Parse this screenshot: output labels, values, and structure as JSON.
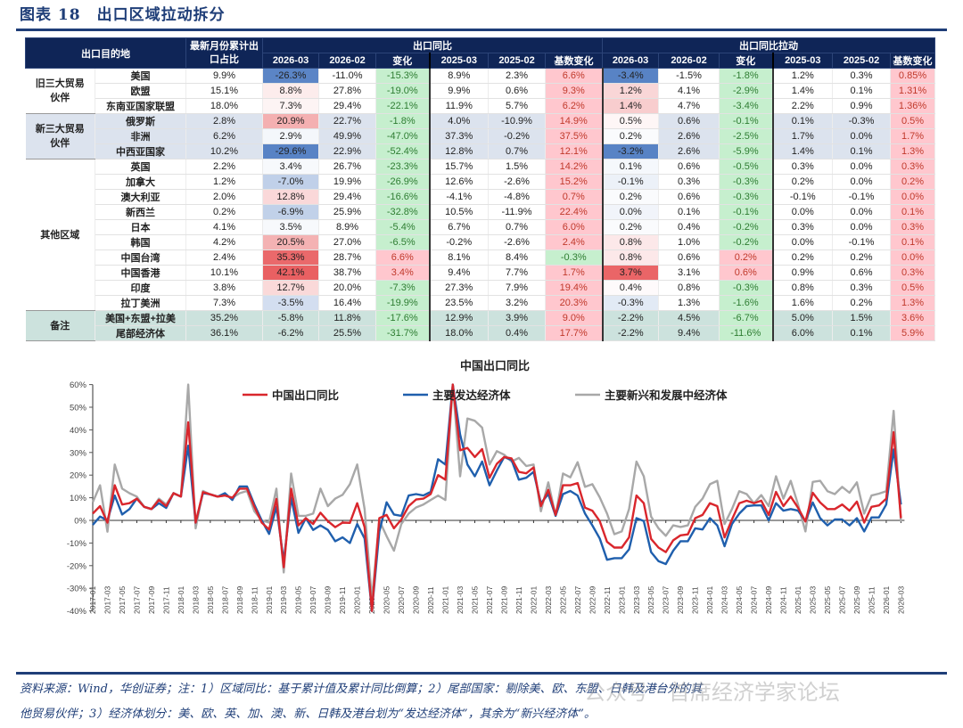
{
  "figure_title": "图表 18　出口区域拉动拆分",
  "table": {
    "header": {
      "destination": "出口目的地",
      "share": "最新月份累计出口占比",
      "yoy_group": "出口同比",
      "pull_group": "出口同比拉动",
      "subcols": [
        "2026-03",
        "2026-02",
        "变化",
        "2025-03",
        "2025-02",
        "基数变化"
      ]
    },
    "groups": [
      {
        "name": "旧三大贸易伙伴",
        "style": "old",
        "rows": [
          {
            "name": "美国",
            "values": [
              "9.9%",
              "-26.3%",
              "-11.0%",
              "-15.3%",
              "8.9%",
              "2.3%",
              "6.6%",
              "-3.4%",
              "-1.5%",
              "-1.8%",
              "1.2%",
              "0.3%",
              "0.85%"
            ]
          },
          {
            "name": "欧盟",
            "values": [
              "15.1%",
              "8.8%",
              "27.8%",
              "-19.0%",
              "9.9%",
              "0.6%",
              "9.3%",
              "1.2%",
              "4.1%",
              "-2.9%",
              "1.4%",
              "0.1%",
              "1.31%"
            ]
          },
          {
            "name": "东南亚国家联盟",
            "values": [
              "18.0%",
              "7.3%",
              "29.4%",
              "-22.1%",
              "11.9%",
              "5.7%",
              "6.2%",
              "1.4%",
              "4.7%",
              "-3.4%",
              "2.2%",
              "0.9%",
              "1.36%"
            ]
          }
        ]
      },
      {
        "name": "新三大贸易伙伴",
        "style": "new",
        "rows": [
          {
            "name": "俄罗斯",
            "values": [
              "2.8%",
              "20.9%",
              "22.7%",
              "-1.8%",
              "4.0%",
              "-10.9%",
              "14.9%",
              "0.5%",
              "0.6%",
              "-0.1%",
              "0.1%",
              "-0.3%",
              "0.5%"
            ]
          },
          {
            "name": "非洲",
            "values": [
              "6.2%",
              "2.9%",
              "49.9%",
              "-47.0%",
              "37.3%",
              "-0.2%",
              "37.5%",
              "0.2%",
              "2.6%",
              "-2.5%",
              "1.7%",
              "0.0%",
              "1.7%"
            ]
          },
          {
            "name": "中西亚国家",
            "values": [
              "10.2%",
              "-29.6%",
              "22.9%",
              "-52.4%",
              "12.8%",
              "0.7%",
              "12.1%",
              "-3.2%",
              "2.6%",
              "-5.9%",
              "1.4%",
              "0.1%",
              "1.3%"
            ]
          }
        ]
      },
      {
        "name": "其他区域",
        "style": "other",
        "rows": [
          {
            "name": "英国",
            "values": [
              "2.2%",
              "3.4%",
              "26.7%",
              "-23.3%",
              "15.7%",
              "1.5%",
              "14.2%",
              "0.1%",
              "0.6%",
              "-0.5%",
              "0.3%",
              "0.0%",
              "0.3%"
            ]
          },
          {
            "name": "加拿大",
            "values": [
              "1.2%",
              "-7.0%",
              "19.9%",
              "-26.9%",
              "12.6%",
              "-2.6%",
              "15.2%",
              "-0.1%",
              "0.3%",
              "-0.3%",
              "0.2%",
              "0.0%",
              "0.2%"
            ]
          },
          {
            "name": "澳大利亚",
            "values": [
              "2.0%",
              "12.8%",
              "29.4%",
              "-16.6%",
              "-4.1%",
              "-4.8%",
              "0.7%",
              "0.2%",
              "0.6%",
              "-0.3%",
              "-0.1%",
              "-0.1%",
              "0.0%"
            ]
          },
          {
            "name": "新西兰",
            "values": [
              "0.2%",
              "-6.9%",
              "25.9%",
              "-32.8%",
              "10.5%",
              "-11.9%",
              "22.4%",
              "0.0%",
              "0.1%",
              "-0.1%",
              "0.0%",
              "0.0%",
              "0.1%"
            ]
          },
          {
            "name": "日本",
            "values": [
              "4.1%",
              "3.5%",
              "8.9%",
              "-5.4%",
              "6.7%",
              "0.7%",
              "6.0%",
              "0.2%",
              "0.4%",
              "-0.2%",
              "0.3%",
              "0.0%",
              "0.3%"
            ]
          },
          {
            "name": "韩国",
            "values": [
              "4.2%",
              "20.5%",
              "27.0%",
              "-6.5%",
              "-0.2%",
              "-2.6%",
              "2.4%",
              "0.8%",
              "1.0%",
              "-0.2%",
              "0.0%",
              "-0.1%",
              "0.1%"
            ]
          },
          {
            "name": "中国台湾",
            "values": [
              "2.4%",
              "35.3%",
              "28.7%",
              "6.6%",
              "8.1%",
              "8.4%",
              "-0.3%",
              "0.8%",
              "0.6%",
              "0.2%",
              "0.2%",
              "0.2%",
              "0.0%"
            ]
          },
          {
            "name": "中国香港",
            "values": [
              "10.1%",
              "42.1%",
              "38.7%",
              "3.4%",
              "9.4%",
              "7.7%",
              "1.7%",
              "3.7%",
              "3.1%",
              "0.6%",
              "0.9%",
              "0.6%",
              "0.3%"
            ]
          },
          {
            "name": "印度",
            "values": [
              "3.8%",
              "12.7%",
              "20.0%",
              "-7.3%",
              "27.3%",
              "7.9%",
              "19.4%",
              "0.4%",
              "0.8%",
              "-0.3%",
              "0.8%",
              "0.3%",
              "0.5%"
            ]
          },
          {
            "name": "拉丁美洲",
            "values": [
              "7.3%",
              "-3.5%",
              "16.4%",
              "-19.9%",
              "23.5%",
              "3.2%",
              "20.3%",
              "-0.3%",
              "1.3%",
              "-1.6%",
              "1.6%",
              "0.2%",
              "1.3%"
            ]
          }
        ]
      },
      {
        "name": "备注",
        "style": "note",
        "rows": [
          {
            "name": "美国+东盟+拉美",
            "values": [
              "35.2%",
              "-5.8%",
              "11.8%",
              "-17.6%",
              "12.9%",
              "3.9%",
              "9.0%",
              "-2.2%",
              "4.5%",
              "-6.7%",
              "5.0%",
              "1.5%",
              "3.6%"
            ]
          },
          {
            "name": "尾部经济体",
            "values": [
              "36.1%",
              "-6.2%",
              "25.5%",
              "-31.7%",
              "18.0%",
              "0.4%",
              "17.7%",
              "-2.2%",
              "9.4%",
              "-11.6%",
              "6.0%",
              "0.1%",
              "5.9%"
            ]
          }
        ]
      }
    ],
    "colors": {
      "header_bg": "#0f2557",
      "neg_fill": "#c6efce",
      "neg_text": "#2e7d32",
      "pos_fill": "#ffc7ce",
      "pos_text": "#c0392b",
      "heat_neg": "#4f7cc2",
      "heat_pos": "#e8585a"
    }
  },
  "chart_data": {
    "type": "line",
    "title": "中国出口同比",
    "xlabel": "",
    "ylabel": "",
    "ylim": [
      -40,
      60
    ],
    "yticks": [
      "60%",
      "50%",
      "40%",
      "30%",
      "20%",
      "10%",
      "0%",
      "-10%",
      "-20%",
      "-30%",
      "-40%"
    ],
    "x_start": "2017-01",
    "x_end": "2026-03",
    "x_tick_step_months": 2,
    "legend_position": "top",
    "series": [
      {
        "name": "中国出口同比",
        "color": "#d9262c",
        "values": [
          3,
          6.3,
          -1,
          15.5,
          7,
          7.6,
          9.6,
          6,
          5,
          9,
          6.3,
          12,
          10.5,
          43.4,
          -1,
          12.5,
          11.5,
          10.5,
          11,
          10,
          14,
          14,
          6,
          -1,
          -4,
          9.5,
          -20.7,
          14,
          -2.2,
          1,
          -1.6,
          3.4,
          -0.3,
          -3,
          -1,
          -1.1,
          7.6,
          -3,
          -40,
          1,
          2.4,
          -3.5,
          0.4,
          6.3,
          9.2,
          9.6,
          11.6,
          20,
          18,
          62,
          31,
          32,
          28,
          31.5,
          18.8,
          25,
          28,
          27.4,
          21.4,
          20.8,
          23.4,
          6.3,
          13.5,
          2.4,
          15.5,
          15.5,
          16.5,
          5.6,
          4.3,
          -0.3,
          -9.5,
          -12,
          -12,
          -7.5,
          11,
          7.6,
          -8.2,
          -12,
          -14,
          -8.8,
          -6.6,
          -6.2,
          1,
          2.4,
          7.6,
          6.3,
          -7.5,
          0.4,
          7.6,
          8.7,
          7.6,
          8.7,
          2.4,
          12.6,
          6.3,
          10.5,
          5.6,
          -0.5,
          12.2,
          7.9,
          5,
          5,
          7,
          4.3,
          8.3,
          -1,
          6,
          6.6,
          9.6,
          39,
          1
        ]
      },
      {
        "name": "主要发达经济体",
        "color": "#1f5fad",
        "values": [
          -2,
          1.7,
          0,
          11,
          2.6,
          5,
          9.6,
          6,
          5,
          7.6,
          5.5,
          12,
          10.5,
          33,
          -1,
          12,
          11.5,
          10.5,
          12,
          9,
          15,
          15,
          7,
          0,
          -6,
          6,
          -18,
          10,
          -5.5,
          1,
          -4.2,
          -2.2,
          -4.2,
          -9.2,
          -7.5,
          -10,
          -1.6,
          -8,
          -40,
          -5,
          8,
          2.6,
          2,
          11,
          11.6,
          11,
          12.6,
          27,
          24.7,
          62,
          38,
          24.7,
          19.5,
          26,
          15.5,
          22,
          28,
          26.7,
          18,
          18.8,
          21.4,
          7.6,
          11.6,
          2,
          11.6,
          13,
          11,
          3,
          -2.2,
          -8,
          -17.4,
          -16.7,
          -16.7,
          -12.8,
          1,
          -0.3,
          -14,
          -18,
          -19.3,
          -13.4,
          -9.2,
          -9.2,
          -3.5,
          -4,
          1,
          -2.2,
          -11.4,
          -1.6,
          3,
          6.3,
          6.6,
          6.6,
          0,
          7.6,
          4.3,
          5,
          4.3,
          -0.3,
          7.9,
          1,
          -2.2,
          0.4,
          0.4,
          -2.2,
          1,
          -4.9,
          1.3,
          1.3,
          7,
          31.3,
          7
        ]
      },
      {
        "name": "主要新兴和发展中经济体",
        "color": "#a8a8a8",
        "values": [
          8,
          15.5,
          -5,
          24.7,
          14,
          12,
          10.5,
          6,
          5,
          9.6,
          7,
          12,
          10.5,
          61,
          -3.5,
          13,
          11.5,
          10.5,
          11,
          10,
          12,
          13,
          4,
          0,
          -1,
          14,
          -23,
          20.7,
          2,
          2,
          3,
          14,
          6.3,
          9.6,
          11.3,
          16,
          24.7,
          5,
          -35,
          0,
          -7,
          -13.4,
          -1.6,
          3,
          5.7,
          7,
          9,
          11,
          9,
          65,
          19.5,
          45,
          44,
          41,
          24.7,
          30.6,
          29,
          26,
          27.6,
          24,
          24.7,
          4,
          16.8,
          2,
          20.7,
          19,
          25.7,
          14.8,
          16,
          10.2,
          3,
          -6.1,
          -4.9,
          5,
          26,
          19.5,
          1.7,
          -3.5,
          -6.8,
          -2.2,
          -2.9,
          -2.2,
          6,
          9.6,
          16,
          17.5,
          -1.6,
          5,
          12.9,
          11.6,
          7.6,
          11.2,
          6.3,
          19.5,
          9.6,
          17.5,
          7,
          -4.9,
          17,
          17.5,
          12.9,
          11.6,
          14.8,
          12.2,
          16.8,
          3,
          11,
          11.8,
          12.9,
          48.4,
          -0.5
        ]
      }
    ]
  },
  "footer": {
    "line1": "资料来源：Wind，华创证券；注：1）区域同比：基于累计值及累计同比倒算；2）尾部国家：剔除美、欧、东盟、日韩及港台外的其",
    "line2": "他贸易伙伴；3）经济体划分：美、欧、英、加、澳、新、日韩及港台划为“发达经济体”，其余为“新兴经济体”。",
    "watermark": "公众号 · 首席经济学家论坛"
  }
}
